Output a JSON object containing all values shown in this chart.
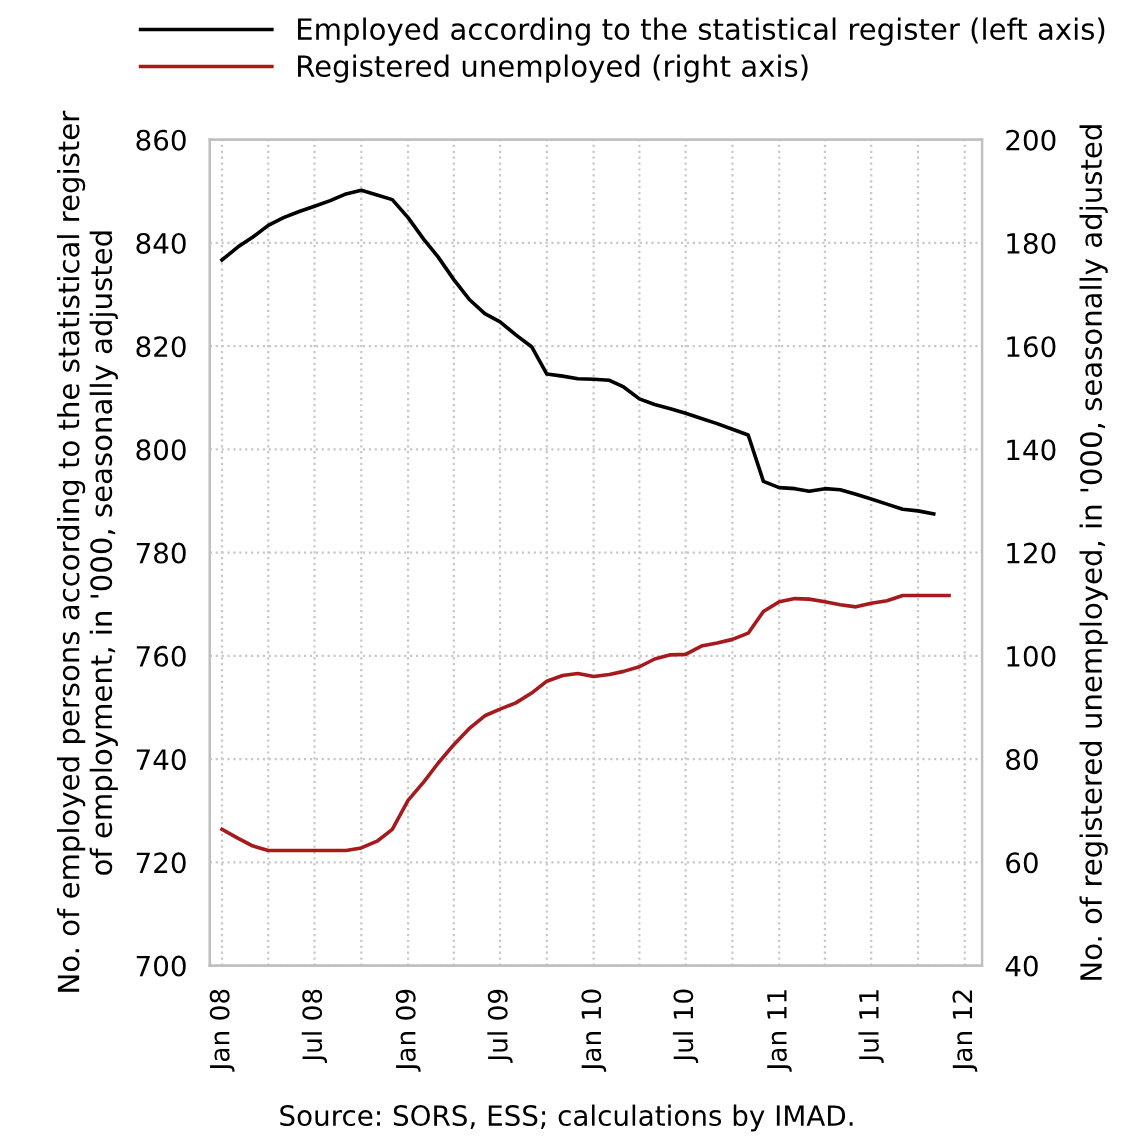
{
  "chart_data": {
    "type": "line",
    "ylabel": "No. of employed persons according to the statistical register\nof employment, in '000, seasonally adjusted",
    "y2label": "No. of registered unemployed, in '000, seasonally adjusted",
    "annotations": [
      "Source: SORS, ESS; calculations by IMAD."
    ],
    "x": [
      "2008-01",
      "2008-02",
      "2008-03",
      "2008-04",
      "2008-05",
      "2008-06",
      "2008-07",
      "2008-08",
      "2008-09",
      "2008-10",
      "2008-11",
      "2008-12",
      "2009-01",
      "2009-02",
      "2009-03",
      "2009-04",
      "2009-05",
      "2009-06",
      "2009-07",
      "2009-08",
      "2009-09",
      "2009-10",
      "2009-11",
      "2009-12",
      "2010-01",
      "2010-02",
      "2010-03",
      "2010-04",
      "2010-05",
      "2010-06",
      "2010-07",
      "2010-08",
      "2010-09",
      "2010-10",
      "2010-11",
      "2010-12",
      "2011-01",
      "2011-02",
      "2011-03",
      "2011-04",
      "2011-05",
      "2011-06",
      "2011-07",
      "2011-08",
      "2011-09",
      "2011-10",
      "2011-11",
      "2011-12"
    ],
    "series": [
      {
        "name": "Employed according to the statistical register (left axis)",
        "color": "#000000",
        "values": [
          836.7,
          839.2,
          841.1,
          843.4,
          844.9,
          846.1,
          847.1,
          848.2,
          849.5,
          850.2,
          849.3,
          848.4,
          844.9,
          840.7,
          837.3,
          832.9,
          829.1,
          826.3,
          824.7,
          822.2,
          819.9,
          814.6,
          814.2,
          813.7,
          813.6,
          813.4,
          812.1,
          809.8,
          808.7,
          807.9,
          807.0,
          806.0,
          805.0,
          803.9,
          802.8,
          793.8,
          792.6,
          792.4,
          791.9,
          792.4,
          792.2,
          791.3,
          790.4,
          789.4,
          788.4,
          788.1,
          787.5,
          null
        ]
      },
      {
        "name": "Registered unemployed (right axis)",
        "color": "#a6191c",
        "axis": "y2",
        "values": [
          66.4,
          64.7,
          63.2,
          62.3,
          62.3,
          62.3,
          62.3,
          62.3,
          62.3,
          62.8,
          64.1,
          66.4,
          72.0,
          75.6,
          79.2,
          82.8,
          85.9,
          88.4,
          89.7,
          90.9,
          92.8,
          95.1,
          96.2,
          96.6,
          96.0,
          96.4,
          97.0,
          97.9,
          99.4,
          100.2,
          100.3,
          101.9,
          102.5,
          103.2,
          104.4,
          108.6,
          110.5,
          111.1,
          111.0,
          110.5,
          109.9,
          109.5,
          110.2,
          110.7,
          111.7,
          111.7,
          111.7,
          111.7
        ]
      }
    ],
    "xlim": [
      "2007-12-08",
      "2012-02-04"
    ],
    "xticks": [
      {
        "value": "2008-01",
        "label": "Jan 08"
      },
      {
        "value": "2008-04",
        "label": null
      },
      {
        "value": "2008-07",
        "label": "Jul 08"
      },
      {
        "value": "2008-10",
        "label": null
      },
      {
        "value": "2009-01",
        "label": "Jan 09"
      },
      {
        "value": "2009-04",
        "label": null
      },
      {
        "value": "2009-07",
        "label": "Jul 09"
      },
      {
        "value": "2009-10",
        "label": null
      },
      {
        "value": "2010-01",
        "label": "Jan 10"
      },
      {
        "value": "2010-04",
        "label": null
      },
      {
        "value": "2010-07",
        "label": "Jul 10"
      },
      {
        "value": "2010-10",
        "label": null
      },
      {
        "value": "2011-01",
        "label": "Jan 11"
      },
      {
        "value": "2011-04",
        "label": null
      },
      {
        "value": "2011-07",
        "label": "Jul 11"
      },
      {
        "value": "2011-10",
        "label": null
      },
      {
        "value": "2012-01",
        "label": "Jan 12"
      }
    ],
    "ylim": [
      700,
      860
    ],
    "yticks": [
      700,
      720,
      740,
      760,
      780,
      800,
      820,
      840,
      860
    ],
    "y2lim": [
      40,
      200
    ],
    "y2ticks": [
      40,
      60,
      80,
      100,
      120,
      140,
      160,
      180,
      200
    ],
    "grid": true,
    "legend": "top",
    "marker": "none",
    "line_style": "solid"
  }
}
